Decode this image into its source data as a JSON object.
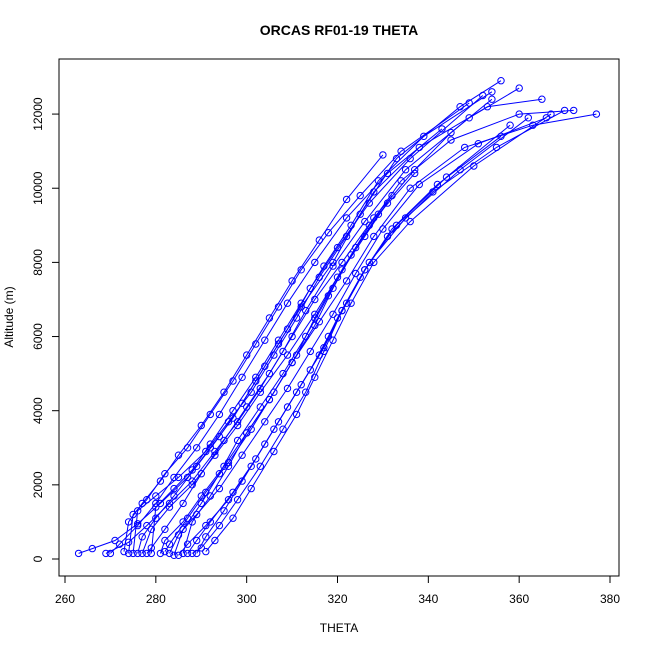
{
  "chart_data": {
    "type": "line",
    "title": "ORCAS RF01-19 THETA",
    "xlabel": "THETA",
    "ylabel": "Altitude (m)",
    "xlim": [
      260,
      380
    ],
    "ylim": [
      0,
      13000
    ],
    "xticks": [
      260,
      280,
      300,
      320,
      340,
      360,
      380
    ],
    "yticks": [
      0,
      2000,
      4000,
      6000,
      8000,
      10000,
      12000
    ],
    "color": "#0000ff",
    "marker": "open-circle",
    "series": [
      {
        "x": [
          263,
          266,
          271,
          276,
          281,
          287,
          292,
          297,
          302,
          307,
          312,
          319,
          325,
          333,
          347,
          356
        ],
        "y": [
          150,
          280,
          500,
          950,
          1500,
          2200,
          3000,
          3800,
          4800,
          5800,
          6800,
          8000,
          9300,
          10800,
          12200,
          12900
        ]
      },
      {
        "x": [
          269,
          274,
          278,
          283,
          288,
          293,
          298,
          303,
          308,
          313,
          319,
          326,
          335,
          349,
          360
        ],
        "y": [
          150,
          450,
          900,
          1500,
          2100,
          2900,
          3700,
          4600,
          5600,
          6700,
          7900,
          9100,
          10500,
          11900,
          12700
        ]
      },
      {
        "x": [
          275,
          276,
          280,
          285,
          291,
          296,
          301,
          306,
          311,
          316,
          322,
          328,
          338,
          353,
          365
        ],
        "y": [
          150,
          1300,
          1700,
          2200,
          2900,
          3700,
          4500,
          5500,
          6500,
          7600,
          8700,
          9900,
          11100,
          12200,
          12400
        ]
      },
      {
        "x": [
          277,
          279,
          283,
          288,
          293,
          298,
          303,
          309,
          315,
          321,
          327,
          334,
          345,
          360,
          372
        ],
        "y": [
          150,
          800,
          1400,
          2000,
          2800,
          3600,
          4500,
          5500,
          6600,
          7800,
          9000,
          10200,
          11300,
          12000,
          12100
        ]
      },
      {
        "x": [
          281,
          282,
          286,
          290,
          295,
          300,
          305,
          310,
          316,
          322,
          328,
          336,
          348,
          363,
          377
        ],
        "y": [
          150,
          500,
          1000,
          1700,
          2500,
          3400,
          4300,
          5300,
          6400,
          7500,
          8700,
          10000,
          11100,
          11700,
          12000
        ]
      },
      {
        "x": [
          283,
          285,
          289,
          294,
          299,
          304,
          309,
          314,
          319,
          324,
          330,
          338,
          351,
          366
        ],
        "y": [
          150,
          650,
          1200,
          1900,
          2800,
          3700,
          4600,
          5600,
          6600,
          7700,
          8900,
          10100,
          11200,
          11900
        ]
      },
      {
        "x": [
          285,
          287,
          291,
          296,
          301,
          306,
          311,
          316,
          320,
          325,
          331,
          341,
          355,
          370
        ],
        "y": [
          100,
          400,
          900,
          1600,
          2500,
          3500,
          4500,
          5500,
          6500,
          7600,
          8700,
          9900,
          11100,
          12100
        ]
      },
      {
        "x": [
          287,
          289,
          292,
          297,
          302,
          307,
          312,
          317,
          321,
          326,
          333,
          344,
          358
        ],
        "y": [
          150,
          500,
          1000,
          1800,
          2700,
          3700,
          4700,
          5700,
          6700,
          7800,
          9000,
          10300,
          11700
        ]
      },
      {
        "x": [
          289,
          291,
          295,
          299,
          304,
          309,
          314,
          318,
          322,
          327,
          335,
          347,
          362
        ],
        "y": [
          150,
          600,
          1300,
          2100,
          3100,
          4100,
          5100,
          6000,
          6900,
          8000,
          9200,
          10500,
          11900
        ]
      },
      {
        "x": [
          273,
          274,
          277,
          281,
          285,
          290,
          295,
          300,
          305,
          310,
          316,
          322,
          330
        ],
        "y": [
          200,
          1000,
          1500,
          2100,
          2800,
          3600,
          4500,
          5500,
          6500,
          7500,
          8600,
          9700,
          10900
        ]
      },
      {
        "x": [
          274,
          275,
          278,
          282,
          287,
          292,
          297,
          302,
          307,
          312,
          318,
          325,
          334,
          349
        ],
        "y": [
          150,
          1200,
          1600,
          2300,
          3000,
          3900,
          4800,
          5800,
          6800,
          7800,
          8800,
          9800,
          11000,
          12300
        ]
      },
      {
        "x": [
          276,
          277,
          280,
          284,
          289,
          294,
          299,
          304,
          309,
          314,
          320,
          327,
          336,
          352
        ],
        "y": [
          150,
          600,
          1100,
          1700,
          2500,
          3300,
          4200,
          5200,
          6200,
          7300,
          8400,
          9600,
          10800,
          12500
        ]
      },
      {
        "x": [
          279,
          280,
          284,
          288,
          292,
          297,
          302,
          307,
          312,
          317,
          323,
          329,
          339,
          354
        ],
        "y": [
          150,
          1400,
          1900,
          2400,
          3100,
          4000,
          4900,
          5900,
          6900,
          7900,
          9000,
          10200,
          11400,
          12600
        ]
      },
      {
        "x": [
          282,
          283,
          287,
          291,
          296,
          301,
          306,
          311,
          315,
          320,
          326,
          332
        ],
        "y": [
          200,
          400,
          1100,
          1800,
          2600,
          3500,
          4500,
          5500,
          6500,
          7600,
          8700,
          9800
        ]
      },
      {
        "x": [
          284,
          286,
          290,
          294,
          298,
          303,
          308,
          313,
          318,
          323,
          329,
          337
        ],
        "y": [
          100,
          800,
          1500,
          2300,
          3200,
          4100,
          5000,
          6000,
          7100,
          8200,
          9300,
          10400
        ]
      },
      {
        "x": [
          286,
          288,
          292,
          296,
          300,
          305,
          310,
          315,
          319,
          324,
          331
        ],
        "y": [
          150,
          1000,
          1700,
          2500,
          3400,
          4300,
          5300,
          6300,
          7300,
          8400,
          9600
        ]
      },
      {
        "x": [
          278,
          279,
          282,
          286,
          290,
          295,
          300,
          305,
          310,
          315,
          321,
          328,
          337,
          345,
          354
        ],
        "y": [
          150,
          300,
          800,
          1500,
          2300,
          3200,
          4100,
          5000,
          6000,
          7000,
          8000,
          9200,
          10500,
          11500,
          12400
        ]
      },
      {
        "x": [
          288,
          290,
          294,
          298,
          303,
          308,
          313,
          317,
          321,
          326,
          332,
          342,
          356
        ],
        "y": [
          150,
          300,
          900,
          1600,
          2500,
          3500,
          4500,
          5600,
          6700,
          7800,
          8900,
          10100,
          11400
        ]
      },
      {
        "x": [
          291,
          293,
          297,
          301,
          306,
          311,
          315,
          319,
          323,
          328,
          336,
          350,
          367
        ],
        "y": [
          200,
          500,
          1100,
          1900,
          2900,
          3900,
          4900,
          5900,
          6900,
          8000,
          9100,
          10600,
          12000
        ]
      },
      {
        "x": [
          270,
          272,
          276,
          280,
          284,
          289,
          294,
          299,
          304,
          309,
          315,
          322,
          331,
          343
        ],
        "y": [
          150,
          400,
          900,
          1500,
          2200,
          3000,
          3900,
          4900,
          5900,
          6900,
          8000,
          9200,
          10400,
          11600
        ]
      }
    ]
  }
}
